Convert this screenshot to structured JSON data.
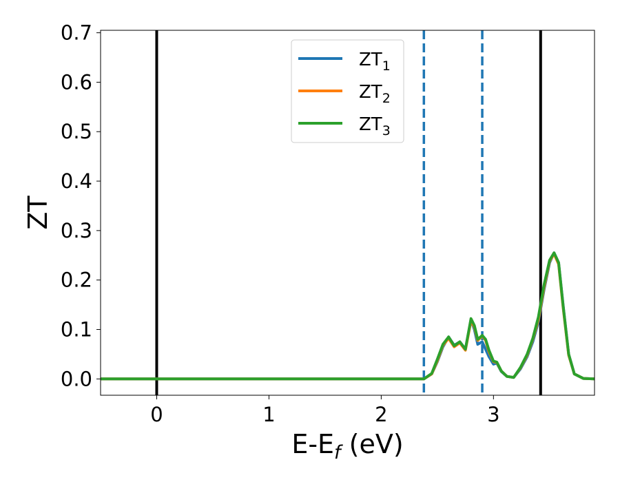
{
  "chart_data": {
    "type": "line",
    "xlabel_main": "E-E",
    "xlabel_sub": "f",
    "xlabel_unit": " (eV)",
    "ylabel": "ZT",
    "xlim": [
      -0.5,
      3.9
    ],
    "ylim": [
      -0.033,
      0.705
    ],
    "xticks": [
      0,
      1,
      2,
      3
    ],
    "yticks": [
      0.0,
      0.1,
      0.2,
      0.3,
      0.4,
      0.5,
      0.6,
      0.7
    ],
    "ytick_labels": [
      "0.0",
      "0.1",
      "0.2",
      "0.3",
      "0.4",
      "0.5",
      "0.6",
      "0.7"
    ],
    "grid": false,
    "legend_position": "upper-center",
    "vlines": [
      {
        "x": 0.0,
        "style": "solid",
        "color": "#000000"
      },
      {
        "x": 3.42,
        "style": "solid",
        "color": "#000000"
      },
      {
        "x": 2.38,
        "style": "dashed",
        "color": "#1f77b4"
      },
      {
        "x": 2.9,
        "style": "dashed",
        "color": "#1f77b4"
      }
    ],
    "series": [
      {
        "name": "ZT",
        "sub": "1",
        "color": "#1f77b4",
        "x": [
          -0.5,
          2.38,
          2.45,
          2.5,
          2.55,
          2.6,
          2.65,
          2.7,
          2.75,
          2.8,
          2.83,
          2.86,
          2.9,
          2.93,
          2.96,
          3.0,
          3.03,
          3.07,
          3.12,
          3.18,
          3.24,
          3.3,
          3.35,
          3.4,
          3.45,
          3.5,
          3.54,
          3.58,
          3.62,
          3.67,
          3.72,
          3.8,
          3.9
        ],
        "y": [
          0.0,
          0.0,
          0.01,
          0.035,
          0.065,
          0.085,
          0.068,
          0.075,
          0.06,
          0.12,
          0.1,
          0.07,
          0.075,
          0.06,
          0.045,
          0.03,
          0.032,
          0.015,
          0.005,
          0.003,
          0.02,
          0.045,
          0.075,
          0.115,
          0.18,
          0.235,
          0.255,
          0.235,
          0.15,
          0.05,
          0.01,
          0.001,
          0.0
        ]
      },
      {
        "name": "ZT",
        "sub": "2",
        "color": "#ff7f0e",
        "x": [
          -0.5,
          2.38,
          2.45,
          2.5,
          2.55,
          2.6,
          2.65,
          2.7,
          2.75,
          2.8,
          2.83,
          2.86,
          2.9,
          2.93,
          2.96,
          3.0,
          3.03,
          3.07,
          3.12,
          3.18,
          3.24,
          3.3,
          3.35,
          3.4,
          3.45,
          3.5,
          3.54,
          3.58,
          3.62,
          3.67,
          3.72,
          3.8,
          3.9
        ],
        "y": [
          0.0,
          0.0,
          0.01,
          0.037,
          0.068,
          0.082,
          0.065,
          0.073,
          0.058,
          0.118,
          0.105,
          0.078,
          0.087,
          0.078,
          0.055,
          0.035,
          0.033,
          0.016,
          0.005,
          0.003,
          0.022,
          0.048,
          0.08,
          0.12,
          0.185,
          0.238,
          0.253,
          0.232,
          0.145,
          0.048,
          0.01,
          0.001,
          0.0
        ]
      },
      {
        "name": "ZT",
        "sub": "3",
        "color": "#2ca02c",
        "x": [
          -0.5,
          2.38,
          2.45,
          2.5,
          2.55,
          2.6,
          2.65,
          2.7,
          2.75,
          2.8,
          2.83,
          2.86,
          2.9,
          2.93,
          2.96,
          3.0,
          3.03,
          3.07,
          3.12,
          3.18,
          3.24,
          3.3,
          3.35,
          3.4,
          3.45,
          3.5,
          3.54,
          3.58,
          3.62,
          3.67,
          3.72,
          3.8,
          3.9
        ],
        "y": [
          0.0,
          0.0,
          0.011,
          0.04,
          0.07,
          0.085,
          0.067,
          0.075,
          0.06,
          0.122,
          0.108,
          0.08,
          0.088,
          0.08,
          0.058,
          0.036,
          0.034,
          0.016,
          0.005,
          0.003,
          0.023,
          0.05,
          0.082,
          0.125,
          0.19,
          0.24,
          0.255,
          0.235,
          0.148,
          0.05,
          0.01,
          0.001,
          0.0
        ]
      }
    ]
  }
}
